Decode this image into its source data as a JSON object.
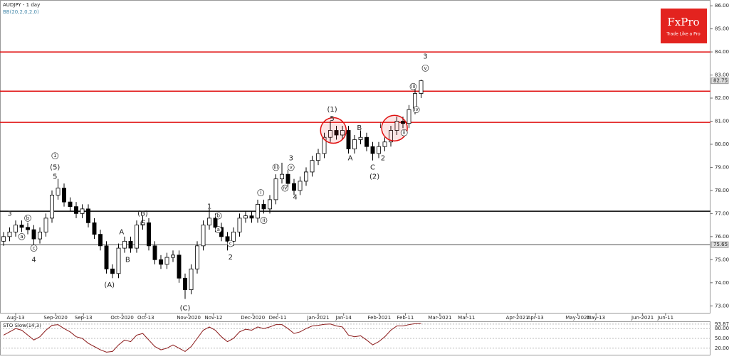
{
  "chart_data": {
    "type": "candlestick",
    "title": "AUDJPY - 1 day",
    "subtitle": "BB(20,2,0,2,0)",
    "logo": {
      "name": "FxPro",
      "tagline": "Trade Like a Pro"
    },
    "up_color": "#ffffff",
    "down_color": "#000000",
    "candles": [
      [
        75.8,
        76.2,
        75.6,
        76.0
      ],
      [
        76.0,
        76.4,
        75.8,
        76.2
      ],
      [
        76.2,
        76.7,
        76.0,
        76.5
      ],
      [
        76.5,
        76.7,
        76.2,
        76.4
      ],
      [
        76.4,
        76.6,
        76.1,
        76.3
      ],
      [
        76.3,
        76.5,
        75.6,
        75.9
      ],
      [
        75.9,
        76.4,
        75.7,
        76.2
      ],
      [
        76.2,
        77.0,
        76.0,
        76.8
      ],
      [
        76.8,
        78.0,
        76.6,
        77.8
      ],
      [
        77.8,
        78.5,
        77.6,
        78.1
      ],
      [
        78.1,
        78.3,
        77.3,
        77.5
      ],
      [
        77.5,
        77.7,
        77.1,
        77.3
      ],
      [
        77.3,
        77.5,
        76.8,
        77.0
      ],
      [
        77.0,
        77.4,
        76.8,
        77.2
      ],
      [
        77.2,
        77.4,
        76.4,
        76.6
      ],
      [
        76.6,
        76.8,
        75.9,
        76.1
      ],
      [
        76.1,
        76.3,
        75.4,
        75.6
      ],
      [
        75.6,
        75.8,
        74.4,
        74.6
      ],
      [
        74.6,
        74.8,
        74.2,
        74.4
      ],
      [
        74.4,
        75.7,
        74.2,
        75.5
      ],
      [
        75.5,
        76.0,
        75.3,
        75.8
      ],
      [
        75.8,
        76.0,
        75.3,
        75.5
      ],
      [
        75.5,
        76.7,
        75.3,
        76.5
      ],
      [
        76.5,
        76.9,
        76.3,
        76.6
      ],
      [
        76.6,
        76.8,
        75.4,
        75.6
      ],
      [
        75.6,
        75.8,
        74.8,
        75.0
      ],
      [
        75.0,
        75.2,
        74.6,
        74.8
      ],
      [
        74.8,
        75.3,
        74.6,
        75.1
      ],
      [
        75.1,
        75.4,
        74.9,
        75.2
      ],
      [
        75.2,
        75.4,
        74.0,
        74.2
      ],
      [
        74.2,
        74.4,
        73.3,
        73.7
      ],
      [
        73.7,
        74.8,
        73.5,
        74.6
      ],
      [
        74.6,
        75.8,
        74.4,
        75.6
      ],
      [
        75.6,
        76.7,
        75.4,
        76.5
      ],
      [
        76.5,
        77.2,
        76.3,
        76.8
      ],
      [
        76.8,
        77.0,
        76.2,
        76.4
      ],
      [
        76.4,
        76.6,
        75.8,
        76.0
      ],
      [
        76.0,
        76.2,
        75.4,
        75.8
      ],
      [
        75.8,
        76.4,
        75.6,
        76.2
      ],
      [
        76.2,
        77.0,
        76.0,
        76.8
      ],
      [
        76.8,
        77.1,
        76.6,
        76.9
      ],
      [
        76.9,
        77.1,
        76.6,
        76.8
      ],
      [
        76.8,
        77.6,
        76.6,
        77.4
      ],
      [
        77.4,
        77.6,
        77.0,
        77.2
      ],
      [
        77.2,
        77.8,
        77.0,
        77.6
      ],
      [
        77.6,
        78.7,
        77.4,
        78.5
      ],
      [
        78.5,
        79.2,
        78.3,
        78.7
      ],
      [
        78.7,
        78.9,
        78.1,
        78.3
      ],
      [
        78.3,
        78.5,
        77.8,
        78.0
      ],
      [
        78.0,
        78.6,
        77.8,
        78.4
      ],
      [
        78.4,
        79.0,
        78.2,
        78.8
      ],
      [
        78.8,
        79.5,
        78.6,
        79.3
      ],
      [
        79.3,
        79.8,
        79.1,
        79.6
      ],
      [
        79.6,
        80.5,
        79.4,
        80.3
      ],
      [
        80.3,
        81.0,
        80.1,
        80.6
      ],
      [
        80.6,
        80.8,
        80.2,
        80.4
      ],
      [
        80.4,
        80.8,
        80.2,
        80.6
      ],
      [
        80.6,
        80.8,
        79.6,
        79.8
      ],
      [
        79.8,
        80.4,
        79.6,
        80.2
      ],
      [
        80.2,
        80.6,
        80.0,
        80.3
      ],
      [
        80.3,
        80.5,
        79.7,
        79.9
      ],
      [
        79.9,
        80.1,
        79.3,
        79.6
      ],
      [
        79.6,
        80.1,
        79.4,
        79.9
      ],
      [
        79.9,
        80.3,
        79.7,
        80.1
      ],
      [
        80.1,
        80.8,
        79.9,
        80.6
      ],
      [
        80.6,
        81.2,
        80.4,
        81.0
      ],
      [
        81.0,
        81.2,
        80.7,
        80.9
      ],
      [
        80.9,
        81.7,
        80.7,
        81.5
      ],
      [
        81.5,
        82.4,
        81.3,
        82.2
      ],
      [
        82.2,
        82.8,
        82.0,
        82.75
      ]
    ],
    "xlim": [
      -0.59,
      116.47
    ],
    "xticks": [
      {
        "value": 2,
        "label": "Aug-13"
      },
      {
        "value": 8.6,
        "label": "Sep-2020"
      },
      {
        "value": 13.2,
        "label": "Sep-13"
      },
      {
        "value": 19.6,
        "label": "Oct-2020"
      },
      {
        "value": 23.5,
        "label": "Oct-13"
      },
      {
        "value": 30.6,
        "label": "Nov-2020"
      },
      {
        "value": 34.7,
        "label": "Nov-12"
      },
      {
        "value": 41.2,
        "label": "Dec-2020"
      },
      {
        "value": 45.3,
        "label": "Dec-11"
      },
      {
        "value": 52,
        "label": "Jan-2021"
      },
      {
        "value": 56.2,
        "label": "Jan-14"
      },
      {
        "value": 62.1,
        "label": "Feb-2021"
      },
      {
        "value": 66.4,
        "label": "Feb-11"
      },
      {
        "value": 72.1,
        "label": "Mar-2021"
      },
      {
        "value": 76.5,
        "label": "Mar-11"
      },
      {
        "value": 84.9,
        "label": "Apr-2021"
      },
      {
        "value": 87.9,
        "label": "Apr-13"
      },
      {
        "value": 94.9,
        "label": "May-2021"
      },
      {
        "value": 97.9,
        "label": "May-13"
      },
      {
        "value": 105.6,
        "label": "Jun-2021"
      },
      {
        "value": 109.4,
        "label": "Jun-11"
      }
    ],
    "ylim": [
      72.7,
      86.25
    ],
    "yticks": [
      {
        "value": 73,
        "label": "73.00"
      },
      {
        "value": 74,
        "label": "74.00"
      },
      {
        "value": 75,
        "label": "75.00"
      },
      {
        "value": 76,
        "label": "76.00"
      },
      {
        "value": 77,
        "label": "77.00"
      },
      {
        "value": 78,
        "label": "78.00"
      },
      {
        "value": 79,
        "label": "79.00"
      },
      {
        "value": 80,
        "label": "80.00"
      },
      {
        "value": 81,
        "label": "81.00"
      },
      {
        "value": 82,
        "label": "82.00"
      },
      {
        "value": 83,
        "label": "83.00"
      },
      {
        "value": 84,
        "label": "84.00"
      },
      {
        "value": 85,
        "label": "85.00"
      },
      {
        "value": 86,
        "label": "86.00"
      }
    ],
    "grid": false,
    "levels": [
      {
        "value": 84.0,
        "color": "#e01010"
      },
      {
        "value": 82.3,
        "color": "#e01010"
      },
      {
        "value": 80.95,
        "color": "#e01010"
      },
      {
        "value": 77.1,
        "color": "#000000"
      },
      {
        "value": 75.65,
        "color": "#888888"
      }
    ],
    "price_markers": [
      {
        "value": 82.75,
        "label": "82.75"
      },
      {
        "value": 75.65,
        "label": "75.65"
      }
    ],
    "highlight_circles": [
      {
        "x": 54.5,
        "y": 80.6
      },
      {
        "x": 64.6,
        "y": 80.7
      }
    ],
    "annotations": [
      {
        "text": "3",
        "x": 1,
        "y": 77.0
      },
      {
        "text": "b",
        "x": 4,
        "y": 76.8,
        "circled": true
      },
      {
        "text": "a",
        "x": 3,
        "y": 76.0,
        "circled": true
      },
      {
        "text": "c",
        "x": 5,
        "y": 75.5,
        "circled": true
      },
      {
        "text": "4",
        "x": 5,
        "y": 75.0
      },
      {
        "text": "1",
        "x": 8.5,
        "y": 79.5,
        "circled": true
      },
      {
        "text": "(5)",
        "x": 8.5,
        "y": 79.0
      },
      {
        "text": "5",
        "x": 8.5,
        "y": 78.6
      },
      {
        "text": "(B)",
        "x": 23,
        "y": 77.0
      },
      {
        "text": "C",
        "x": 23,
        "y": 76.6
      },
      {
        "text": "A",
        "x": 19.5,
        "y": 76.2
      },
      {
        "text": "B",
        "x": 20.5,
        "y": 75.0
      },
      {
        "text": "(A)",
        "x": 17.5,
        "y": 73.9
      },
      {
        "text": "(C)",
        "x": 30,
        "y": 72.9
      },
      {
        "text": "1",
        "x": 34,
        "y": 77.3
      },
      {
        "text": "b",
        "x": 35.5,
        "y": 76.9,
        "circled": true
      },
      {
        "text": "a",
        "x": 35.5,
        "y": 76.3,
        "circled": true
      },
      {
        "text": "c",
        "x": 37.5,
        "y": 75.7,
        "circled": true
      },
      {
        "text": "2",
        "x": 37.5,
        "y": 75.1
      },
      {
        "text": "i",
        "x": 42.5,
        "y": 77.9,
        "circled": true
      },
      {
        "text": "ii",
        "x": 43,
        "y": 76.7,
        "circled": true
      },
      {
        "text": "iii",
        "x": 45,
        "y": 79.0,
        "circled": true
      },
      {
        "text": "iv",
        "x": 46.5,
        "y": 78.1,
        "circled": true
      },
      {
        "text": "v",
        "x": 47.5,
        "y": 79.0,
        "circled": true
      },
      {
        "text": "3",
        "x": 47.5,
        "y": 79.4
      },
      {
        "text": "4",
        "x": 48.2,
        "y": 77.7
      },
      {
        "text": "(1)",
        "x": 54.3,
        "y": 81.5
      },
      {
        "text": "5",
        "x": 54.3,
        "y": 81.1
      },
      {
        "text": "A",
        "x": 57.3,
        "y": 79.4
      },
      {
        "text": "B",
        "x": 58.8,
        "y": 80.7
      },
      {
        "text": "C",
        "x": 61,
        "y": 79.0
      },
      {
        "text": "(2)",
        "x": 61.3,
        "y": 78.6
      },
      {
        "text": "2",
        "x": 62.7,
        "y": 79.4
      },
      {
        "text": "i",
        "x": 62.3,
        "y": 80.8
      },
      {
        "text": "ii",
        "x": 66.2,
        "y": 80.5,
        "circled": true
      },
      {
        "text": "iii",
        "x": 67.7,
        "y": 82.5,
        "circled": true
      },
      {
        "text": "iv",
        "x": 68.2,
        "y": 81.5,
        "circled": true
      },
      {
        "text": "v",
        "x": 69.7,
        "y": 83.3,
        "circled": true
      },
      {
        "text": "3",
        "x": 69.7,
        "y": 83.8
      }
    ],
    "stochastic": {
      "title": "STO Slow(14,3)",
      "color": "#8b1a1a",
      "values": [
        60,
        70,
        80,
        75,
        60,
        45,
        55,
        75,
        90,
        92,
        80,
        70,
        55,
        50,
        35,
        25,
        15,
        8,
        10,
        30,
        45,
        40,
        60,
        65,
        45,
        25,
        15,
        20,
        30,
        20,
        10,
        25,
        50,
        75,
        85,
        75,
        55,
        40,
        50,
        70,
        78,
        75,
        85,
        80,
        85,
        92,
        92,
        80,
        65,
        70,
        80,
        88,
        90,
        93,
        94,
        88,
        85,
        60,
        55,
        58,
        45,
        30,
        40,
        55,
        75,
        88,
        88,
        92,
        95,
        96
      ],
      "ylim": [
        0,
        100
      ],
      "yticks": [
        {
          "value": 20,
          "label": "20.00"
        },
        {
          "value": 50,
          "label": "50.00"
        },
        {
          "value": 80,
          "label": "80.00"
        },
        {
          "value": 93.87,
          "label": "93.87"
        }
      ]
    }
  }
}
